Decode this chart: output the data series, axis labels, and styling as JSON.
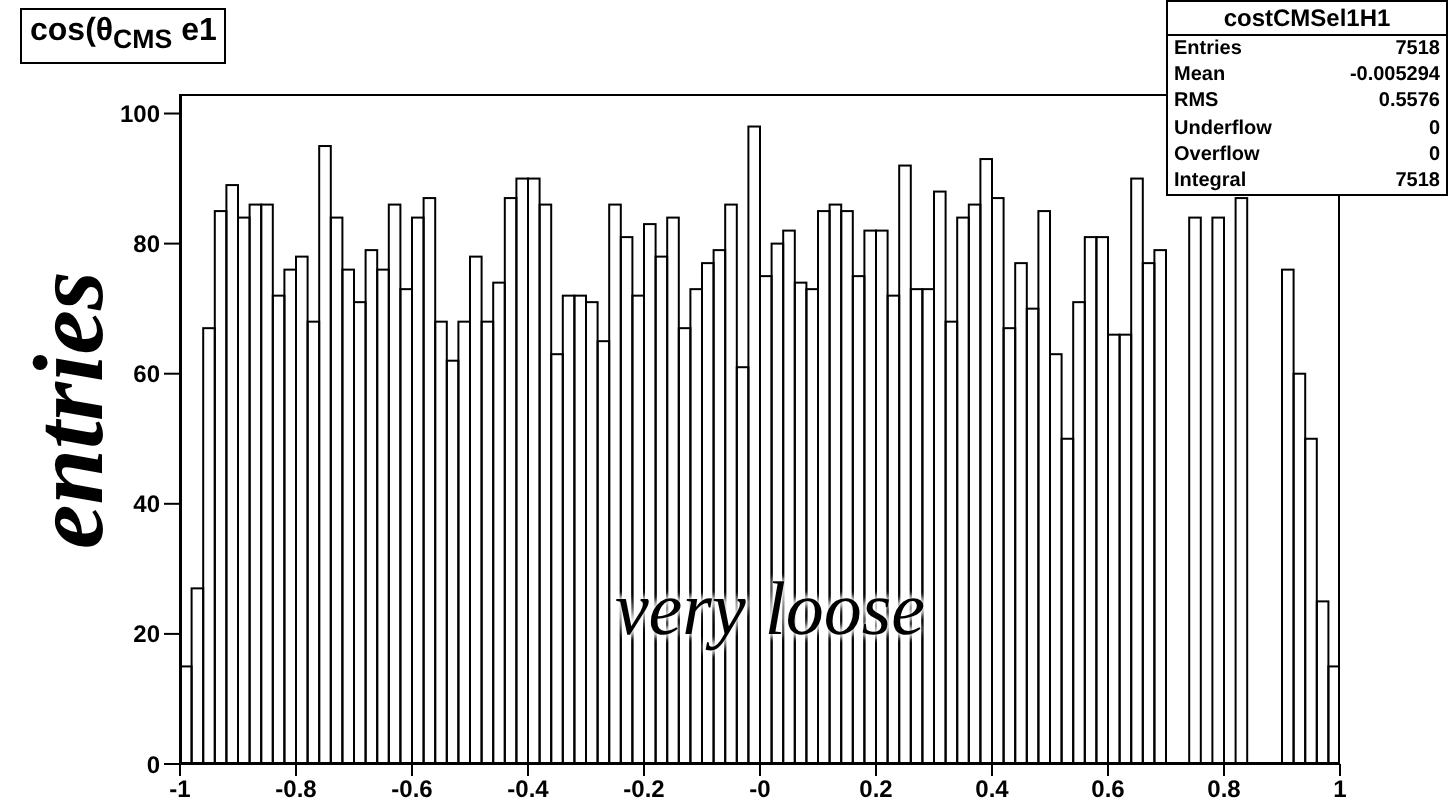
{
  "chart_data": {
    "type": "histogram",
    "title": "cos(θ$_{CMS}$ e1",
    "ylabel": "entries",
    "annotations": [
      "very loose",
      "costCMSel1H1",
      "Entries",
      "7518",
      "Mean",
      "-0.005294",
      "RMS",
      "0.5576",
      "Underflow",
      "0",
      "Overflow",
      "0",
      "Integral",
      "7518"
    ],
    "bins": [
      -1,
      -0.98,
      -0.96,
      -0.94,
      -0.92,
      -0.9,
      -0.88,
      -0.86,
      -0.84,
      -0.82,
      -0.8,
      -0.78,
      -0.76,
      -0.74,
      -0.72,
      -0.7,
      -0.68,
      -0.66,
      -0.64,
      -0.62,
      -0.6,
      -0.58,
      -0.56,
      -0.54,
      -0.52,
      -0.5,
      -0.48,
      -0.46,
      -0.44,
      -0.42,
      -0.4,
      -0.38,
      -0.36,
      -0.34,
      -0.32,
      -0.3,
      -0.28,
      -0.26,
      -0.24,
      -0.22,
      -0.2,
      -0.18,
      -0.16,
      -0.14,
      -0.12,
      -0.1,
      -0.08,
      -0.06,
      -0.04,
      -0.02,
      0,
      0.02,
      0.04,
      0.06,
      0.08,
      0.1,
      0.12,
      0.14,
      0.16,
      0.18,
      0.2,
      0.22,
      0.24,
      0.26,
      0.28,
      0.3,
      0.32,
      0.34,
      0.36,
      0.38,
      0.4,
      0.42,
      0.44,
      0.46,
      0.48,
      0.5,
      0.52,
      0.54,
      0.56,
      0.58,
      0.6,
      0.62,
      0.64,
      0.66,
      0.68,
      0.7,
      0.72,
      0.74,
      0.76,
      0.78,
      0.8,
      0.82,
      0.84,
      0.86,
      0.88,
      0.9,
      0.92,
      0.94,
      0.96,
      0.98,
      1
    ],
    "values": [
      15,
      27,
      67,
      85,
      89,
      84,
      86,
      86,
      72,
      76,
      78,
      68,
      95,
      84,
      76,
      71,
      79,
      76,
      86,
      73,
      84,
      87,
      68,
      62,
      68,
      78,
      68,
      74,
      87,
      90,
      90,
      86,
      63,
      72,
      72,
      71,
      65,
      86,
      81,
      72,
      83,
      78,
      84,
      67,
      73,
      77,
      79,
      86,
      61,
      98,
      75,
      80,
      82,
      74,
      73,
      85,
      86,
      85,
      75,
      82,
      82,
      72,
      92,
      73,
      73,
      88,
      68,
      84,
      86,
      93,
      87,
      67,
      77,
      70,
      85,
      63,
      50,
      71,
      81,
      81,
      66,
      66,
      90,
      77,
      79,
      null,
      null,
      84,
      null,
      84,
      null,
      87,
      null,
      null,
      null,
      76,
      60,
      50,
      25,
      15
    ],
    "color": "#000000",
    "xlim": [
      -1,
      1
    ],
    "xticks": [
      -1,
      -0.8,
      -0.6,
      -0.4,
      -0.2,
      {
        "value": 0,
        "label": "-0"
      },
      0.2,
      0.4,
      0.6,
      0.8,
      1
    ],
    "ylim": [
      0,
      103
    ],
    "yticks": [
      0,
      20,
      40,
      60,
      80,
      100
    ]
  }
}
